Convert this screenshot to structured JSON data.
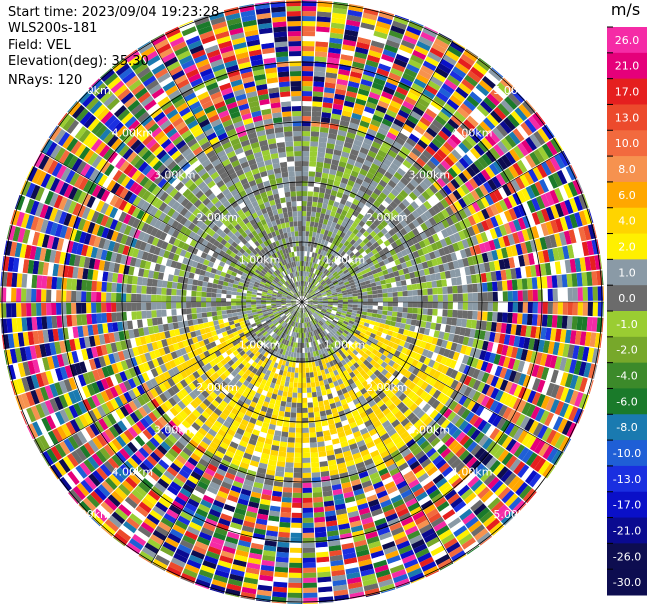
{
  "header": {
    "start_time": "Start time: 2023/09/04 19:23:28",
    "instrument": "WLS200s-181",
    "field": "Field: VEL",
    "elevation": "Elevation(deg): 35.30",
    "nrays": "NRays: 120"
  },
  "range_rings": {
    "labels": [
      "1.00km",
      "2.00km",
      "3.00km",
      "4.00km",
      "5.00km"
    ]
  },
  "colorbar": {
    "unit": "m/s",
    "bands": [
      {
        "label": "26.0",
        "color": "#f52ba6"
      },
      {
        "label": "21.0",
        "color": "#e5007a"
      },
      {
        "label": "17.0",
        "color": "#e51f1f"
      },
      {
        "label": "13.0",
        "color": "#ec4a2c"
      },
      {
        "label": "10.0",
        "color": "#f26a3e"
      },
      {
        "label": "8.0",
        "color": "#f6924f"
      },
      {
        "label": "6.0",
        "color": "#ffa700"
      },
      {
        "label": "4.0",
        "color": "#ffd400"
      },
      {
        "label": "2.0",
        "color": "#fff000"
      },
      {
        "label": "1.0",
        "color": "#8a9aa6"
      },
      {
        "label": "0.0",
        "color": "#6b6b6b"
      },
      {
        "label": "-1.0",
        "color": "#9acd32"
      },
      {
        "label": "-2.0",
        "color": "#77a82a"
      },
      {
        "label": "-4.0",
        "color": "#3c8a2a"
      },
      {
        "label": "-6.0",
        "color": "#1a7a2a"
      },
      {
        "label": "-8.0",
        "color": "#1a7ab0"
      },
      {
        "label": "-10.0",
        "color": "#1f5fd6"
      },
      {
        "label": "-13.0",
        "color": "#1a2fe0"
      },
      {
        "label": "-17.0",
        "color": "#0a10c8"
      },
      {
        "label": "-21.0",
        "color": "#0a0a90"
      },
      {
        "label": "-26.0",
        "color": "#0d0d50"
      },
      {
        "label": "-30.0",
        "color": "#0d0d50"
      }
    ]
  }
}
